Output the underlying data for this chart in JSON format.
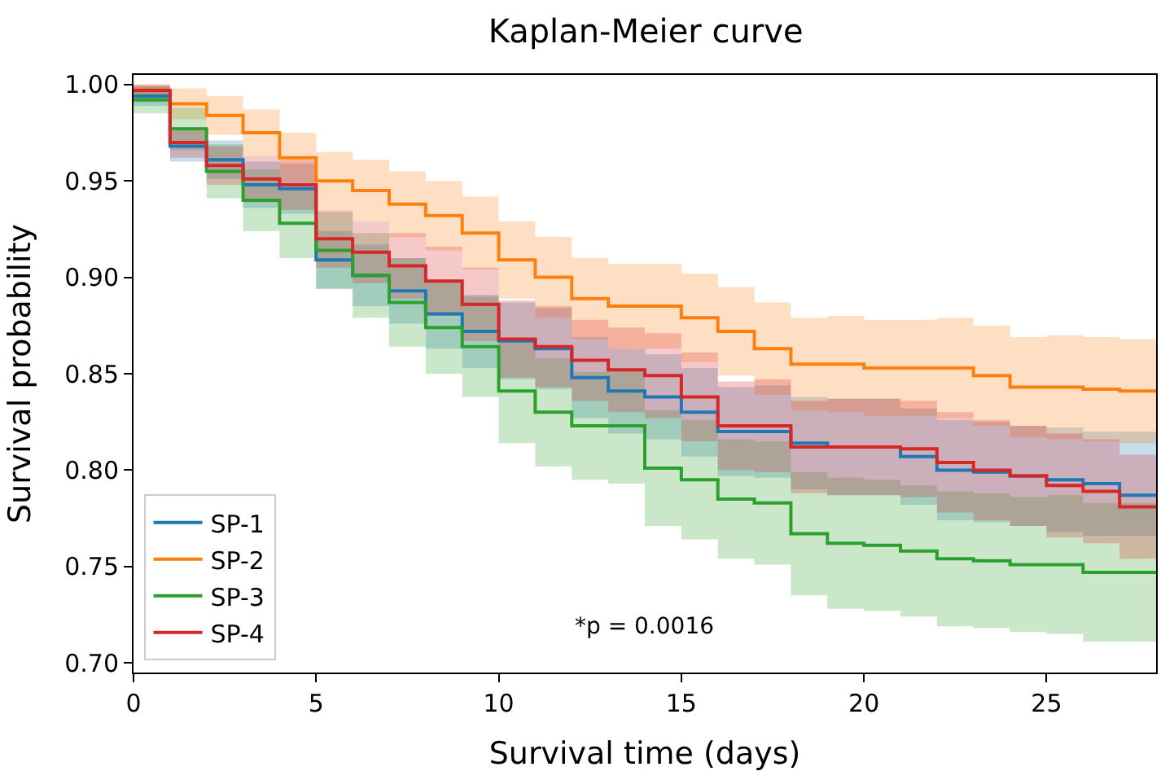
{
  "chart_data": {
    "type": "step",
    "title": "Kaplan-Meier curve",
    "xlabel": "Survival time (days)",
    "ylabel": "Survival probability",
    "x": [
      0,
      1,
      2,
      3,
      4,
      5,
      6,
      7,
      8,
      9,
      10,
      11,
      12,
      13,
      14,
      15,
      16,
      17,
      18,
      19,
      20,
      21,
      22,
      23,
      24,
      25,
      26,
      27,
      28
    ],
    "xlim": [
      0,
      28
    ],
    "ylim": [
      0.695,
      1.005
    ],
    "xticks": [
      0,
      5,
      10,
      15,
      20,
      25
    ],
    "yticks": [
      {
        "value": 0.7,
        "label": "0.70"
      },
      {
        "value": 0.75,
        "label": "0.75"
      },
      {
        "value": 0.8,
        "label": "0.80"
      },
      {
        "value": 0.85,
        "label": "0.85"
      },
      {
        "value": 0.9,
        "label": "0.90"
      },
      {
        "value": 0.95,
        "label": "0.95"
      },
      {
        "value": 1.0,
        "label": "1.00"
      }
    ],
    "legend": "bottom left",
    "line_style": "solid",
    "marker": "none",
    "annotations": [
      "*p = 0.0016"
    ],
    "series": [
      {
        "name": "SP-1",
        "color": "#1f77b4",
        "values": [
          0.994,
          0.968,
          0.961,
          0.948,
          0.946,
          0.909,
          0.901,
          0.893,
          0.881,
          0.872,
          0.867,
          0.863,
          0.848,
          0.841,
          0.838,
          0.83,
          0.82,
          0.82,
          0.814,
          0.812,
          0.812,
          0.807,
          0.8,
          0.799,
          0.797,
          0.795,
          0.793,
          0.787,
          0.787
        ],
        "upper": [
          0.999,
          0.976,
          0.971,
          0.96,
          0.959,
          0.924,
          0.917,
          0.91,
          0.899,
          0.891,
          0.887,
          0.884,
          0.869,
          0.863,
          0.86,
          0.853,
          0.843,
          0.844,
          0.838,
          0.837,
          0.837,
          0.832,
          0.826,
          0.825,
          0.823,
          0.822,
          0.82,
          0.82,
          0.814
        ],
        "lower": [
          0.989,
          0.96,
          0.951,
          0.936,
          0.933,
          0.894,
          0.885,
          0.876,
          0.863,
          0.853,
          0.847,
          0.842,
          0.827,
          0.819,
          0.816,
          0.807,
          0.797,
          0.796,
          0.79,
          0.787,
          0.787,
          0.782,
          0.774,
          0.773,
          0.771,
          0.768,
          0.766,
          0.766,
          0.76
        ]
      },
      {
        "name": "SP-2",
        "color": "#ff7f0e",
        "values": [
          0.997,
          0.99,
          0.984,
          0.975,
          0.962,
          0.95,
          0.945,
          0.938,
          0.932,
          0.923,
          0.909,
          0.9,
          0.889,
          0.885,
          0.885,
          0.879,
          0.872,
          0.863,
          0.855,
          0.855,
          0.853,
          0.853,
          0.853,
          0.849,
          0.843,
          0.843,
          0.842,
          0.841,
          0.841
        ],
        "upper": [
          1.0,
          0.998,
          0.994,
          0.987,
          0.975,
          0.965,
          0.961,
          0.955,
          0.95,
          0.942,
          0.929,
          0.921,
          0.91,
          0.907,
          0.907,
          0.902,
          0.895,
          0.887,
          0.879,
          0.88,
          0.878,
          0.878,
          0.879,
          0.875,
          0.869,
          0.87,
          0.869,
          0.868,
          0.868
        ],
        "lower": [
          0.992,
          0.982,
          0.974,
          0.963,
          0.949,
          0.935,
          0.929,
          0.921,
          0.914,
          0.904,
          0.889,
          0.879,
          0.868,
          0.863,
          0.863,
          0.856,
          0.849,
          0.839,
          0.831,
          0.83,
          0.828,
          0.828,
          0.827,
          0.823,
          0.817,
          0.816,
          0.815,
          0.814,
          0.814
        ]
      },
      {
        "name": "SP-3",
        "color": "#2ca02c",
        "values": [
          0.992,
          0.977,
          0.955,
          0.94,
          0.928,
          0.914,
          0.901,
          0.887,
          0.874,
          0.864,
          0.841,
          0.83,
          0.823,
          0.823,
          0.801,
          0.795,
          0.785,
          0.783,
          0.767,
          0.762,
          0.761,
          0.758,
          0.754,
          0.753,
          0.751,
          0.751,
          0.747,
          0.747,
          0.747
        ],
        "upper": [
          0.999,
          0.988,
          0.969,
          0.956,
          0.946,
          0.934,
          0.923,
          0.91,
          0.898,
          0.89,
          0.868,
          0.858,
          0.851,
          0.853,
          0.831,
          0.826,
          0.816,
          0.815,
          0.799,
          0.796,
          0.795,
          0.792,
          0.789,
          0.788,
          0.786,
          0.787,
          0.783,
          0.783,
          0.783
        ],
        "lower": [
          0.985,
          0.966,
          0.941,
          0.924,
          0.91,
          0.894,
          0.879,
          0.864,
          0.85,
          0.838,
          0.814,
          0.802,
          0.795,
          0.793,
          0.771,
          0.764,
          0.754,
          0.751,
          0.735,
          0.728,
          0.727,
          0.724,
          0.719,
          0.718,
          0.716,
          0.715,
          0.711,
          0.711,
          0.711
        ]
      },
      {
        "name": "SP-4",
        "color": "#d62728",
        "values": [
          0.997,
          0.97,
          0.958,
          0.951,
          0.948,
          0.92,
          0.913,
          0.906,
          0.898,
          0.886,
          0.868,
          0.864,
          0.857,
          0.852,
          0.849,
          0.838,
          0.823,
          0.823,
          0.812,
          0.812,
          0.812,
          0.811,
          0.804,
          0.8,
          0.797,
          0.792,
          0.789,
          0.781,
          0.781
        ],
        "upper": [
          1.0,
          0.978,
          0.968,
          0.963,
          0.961,
          0.935,
          0.929,
          0.923,
          0.916,
          0.905,
          0.888,
          0.885,
          0.878,
          0.874,
          0.871,
          0.861,
          0.846,
          0.847,
          0.836,
          0.837,
          0.837,
          0.836,
          0.83,
          0.826,
          0.823,
          0.819,
          0.816,
          0.808,
          0.808
        ],
        "lower": [
          0.992,
          0.962,
          0.948,
          0.939,
          0.935,
          0.905,
          0.897,
          0.889,
          0.88,
          0.867,
          0.848,
          0.843,
          0.836,
          0.83,
          0.827,
          0.815,
          0.8,
          0.799,
          0.788,
          0.787,
          0.787,
          0.786,
          0.778,
          0.774,
          0.771,
          0.765,
          0.762,
          0.754,
          0.754
        ]
      }
    ]
  }
}
